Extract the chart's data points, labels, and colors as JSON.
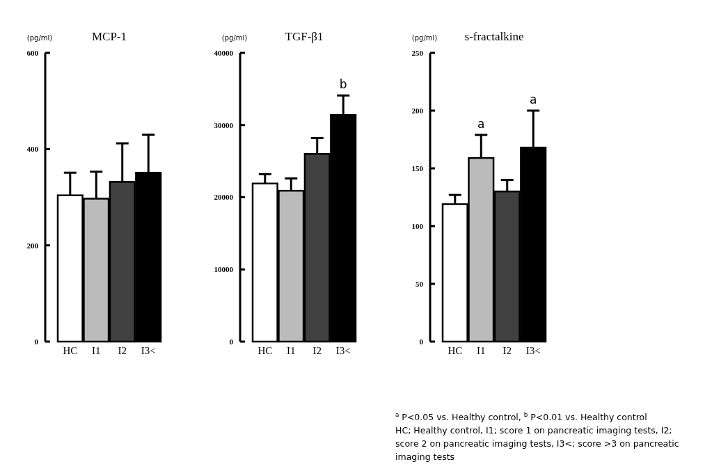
{
  "chart_data": [
    {
      "type": "bar",
      "title": "MCP-1",
      "ylabel": "(pg/ml)",
      "categories": [
        "HC",
        "I1",
        "I2",
        "I3<"
      ],
      "values": [
        304,
        297,
        332,
        351
      ],
      "errors": [
        [
          304,
          351
        ],
        [
          297,
          353
        ],
        [
          332,
          412
        ],
        [
          351,
          430
        ]
      ],
      "colors": [
        "#ffffff",
        "#bbbbbb",
        "#404040",
        "#000000"
      ],
      "ylim": [
        0,
        600
      ],
      "yticks": [
        0,
        200,
        400,
        600
      ],
      "grid": false
    },
    {
      "type": "bar",
      "title": "TGF-β1",
      "ylabel": "(pg/ml)",
      "categories": [
        "HC",
        "I1",
        "I2",
        "I3<"
      ],
      "values": [
        21900,
        20900,
        26000,
        31400
      ],
      "errors": [
        [
          21900,
          23200
        ],
        [
          20900,
          22600
        ],
        [
          26000,
          28200
        ],
        [
          31400,
          34100
        ]
      ],
      "colors": [
        "#ffffff",
        "#bbbbbb",
        "#404040",
        "#000000"
      ],
      "ylim": [
        0,
        40000
      ],
      "yticks": [
        0,
        10000,
        20000,
        30000,
        40000
      ],
      "grid": false,
      "annotations": [
        {
          "text": "b",
          "x": "I3<",
          "y": 34100
        }
      ]
    },
    {
      "type": "bar",
      "title": "s-fractalkine",
      "ylabel": "(pg/ml)",
      "categories": [
        "HC",
        "I1",
        "I2",
        "I3<"
      ],
      "values": [
        119,
        159,
        130,
        168
      ],
      "errors": [
        [
          119,
          127
        ],
        [
          159,
          179
        ],
        [
          130,
          140
        ],
        [
          168,
          200
        ]
      ],
      "colors": [
        "#ffffff",
        "#bbbbbb",
        "#404040",
        "#000000"
      ],
      "ylim": [
        0,
        250
      ],
      "yticks": [
        0,
        50,
        100,
        150,
        200,
        250
      ],
      "grid": false,
      "annotations": [
        {
          "text": "a",
          "x": "I1",
          "y": 179
        },
        {
          "text": "a",
          "x": "I3<",
          "y": 200
        },
        "$^{a}$ P<0.05 vs. Healthy control, $^{b}$ P<0.01 vs. Healthy control",
        "HC; Healthy control, I1; score 1 on pancreatic imaging tests, I2; score 2 on pancreatic imaging tests, I3<; score >3 on pancreatic imaging tests"
      ]
    }
  ]
}
